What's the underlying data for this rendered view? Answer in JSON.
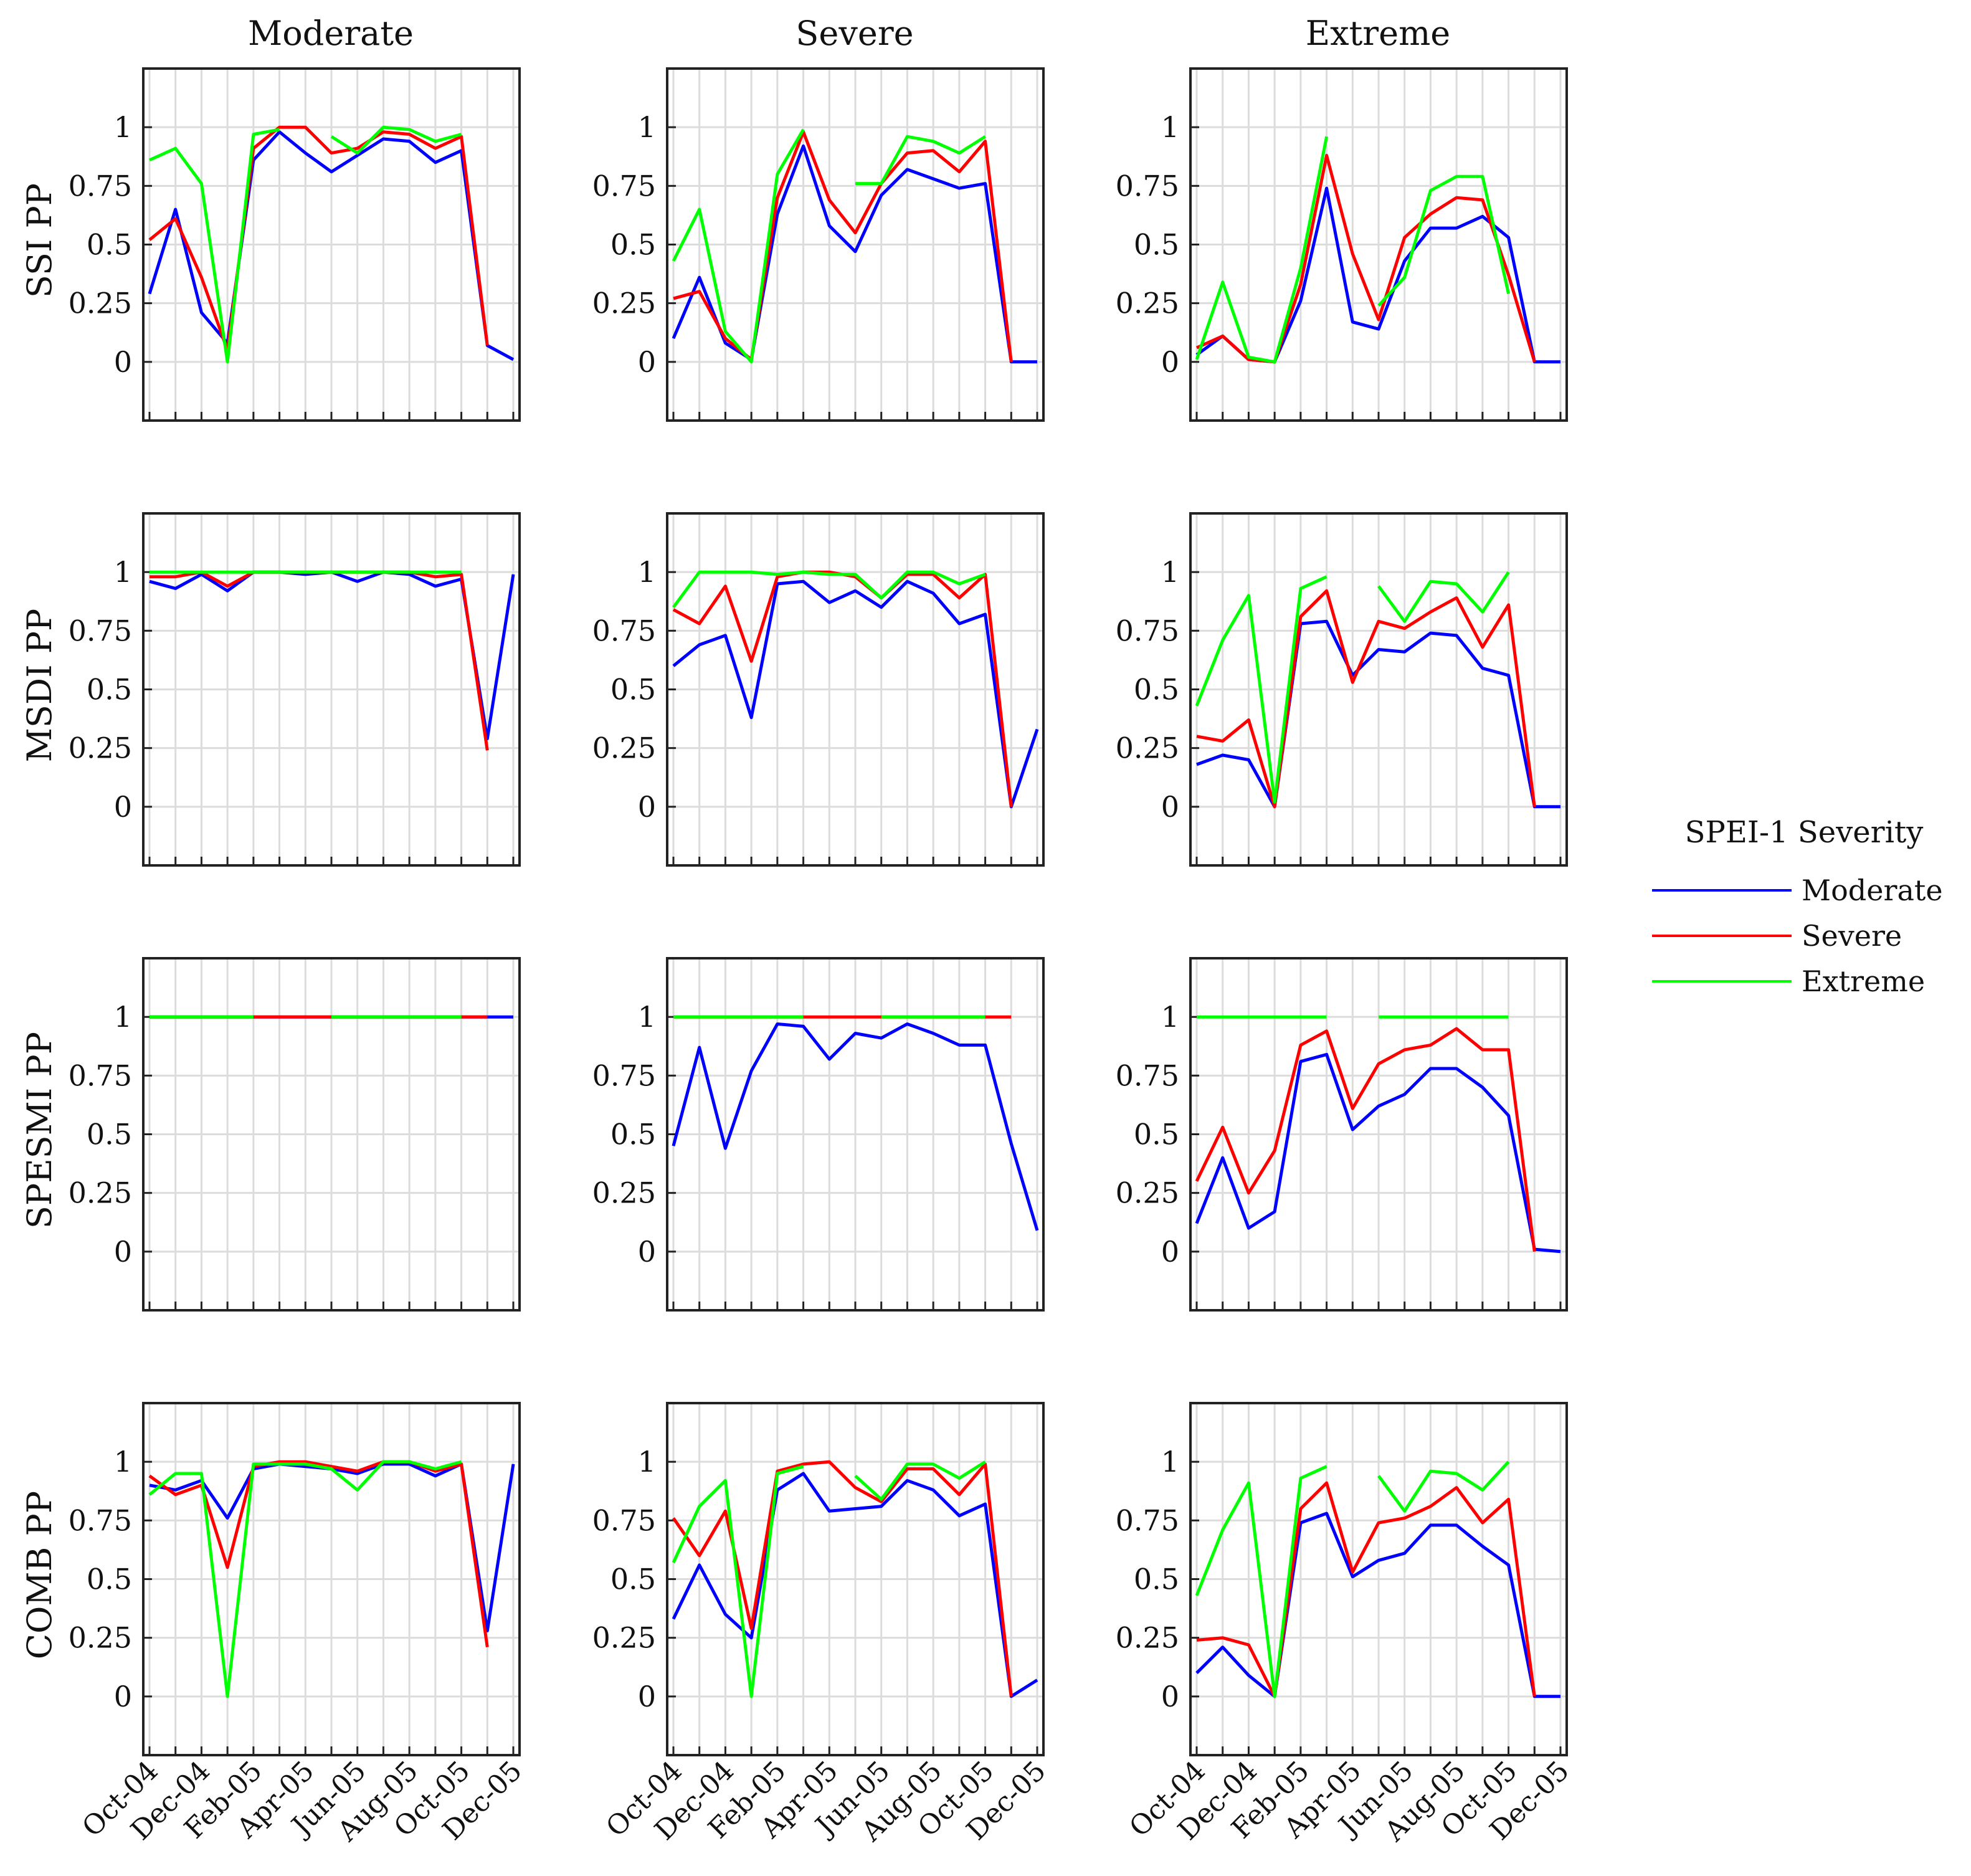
{
  "figure": {
    "column_titles": [
      "Moderate",
      "Severe",
      "Extreme"
    ],
    "row_labels": [
      "SSI PP",
      "MSDI PP",
      "SPESMI PP",
      "COMB PP"
    ],
    "x_tick_labels": [
      "Oct-04",
      "Dec-04",
      "Feb-05",
      "Apr-05",
      "Jun-05",
      "Aug-05",
      "Oct-05",
      "Dec-05"
    ],
    "y_tick_labels": [
      "0",
      "0.25",
      "0.5",
      "0.75",
      "1"
    ],
    "legend": {
      "title": "SPEI-1 Severity",
      "entries": [
        {
          "name": "Moderate",
          "color": "#0000ff"
        },
        {
          "name": "Severe",
          "color": "#ff0000"
        },
        {
          "name": "Extreme",
          "color": "#00ff00"
        }
      ]
    }
  },
  "chart_data": {
    "type": "line",
    "x": [
      "Oct-04",
      "Nov-04",
      "Dec-04",
      "Jan-05",
      "Feb-05",
      "Mar-05",
      "Apr-05",
      "May-05",
      "Jun-05",
      "Jul-05",
      "Aug-05",
      "Sep-05",
      "Oct-05",
      "Nov-05",
      "Dec-05"
    ],
    "ylim": [
      -0.25,
      1.25
    ],
    "y_ticks": [
      0,
      0.25,
      0.5,
      0.75,
      1
    ],
    "grid": true,
    "legend_position": "right",
    "panels": [
      {
        "row": "SSI PP",
        "column": "Moderate",
        "series": [
          {
            "name": "Moderate",
            "values": [
              0.29,
              0.65,
              0.21,
              0.08,
              0.86,
              0.98,
              0.89,
              0.81,
              0.88,
              0.95,
              0.94,
              0.85,
              0.9,
              0.07,
              0.01
            ]
          },
          {
            "name": "Severe",
            "values": [
              0.52,
              0.61,
              0.36,
              0.05,
              0.91,
              1.0,
              1.0,
              0.89,
              0.91,
              0.98,
              0.97,
              0.91,
              0.96,
              0.07,
              null
            ]
          },
          {
            "name": "Extreme",
            "values": [
              0.86,
              0.91,
              0.76,
              0.0,
              0.97,
              0.99,
              null,
              0.96,
              0.89,
              1.0,
              0.99,
              0.94,
              0.97,
              null,
              null
            ]
          }
        ]
      },
      {
        "row": "SSI PP",
        "column": "Severe",
        "series": [
          {
            "name": "Moderate",
            "values": [
              0.1,
              0.36,
              0.08,
              0.01,
              0.63,
              0.92,
              0.58,
              0.47,
              0.71,
              0.82,
              0.78,
              0.74,
              0.76,
              0.0,
              0.0
            ]
          },
          {
            "name": "Severe",
            "values": [
              0.27,
              0.3,
              0.1,
              0.01,
              0.7,
              0.98,
              0.69,
              0.55,
              0.76,
              0.89,
              0.9,
              0.81,
              0.94,
              0.0,
              null
            ]
          },
          {
            "name": "Extreme",
            "values": [
              0.43,
              0.65,
              0.13,
              0.0,
              0.8,
              0.99,
              null,
              0.76,
              0.76,
              0.96,
              0.94,
              0.89,
              0.96,
              null,
              null
            ]
          }
        ]
      },
      {
        "row": "SSI PP",
        "column": "Extreme",
        "series": [
          {
            "name": "Moderate",
            "values": [
              0.03,
              0.11,
              0.01,
              0.0,
              0.26,
              0.74,
              0.17,
              0.14,
              0.43,
              0.57,
              0.57,
              0.62,
              0.53,
              0.0,
              0.0
            ]
          },
          {
            "name": "Severe",
            "values": [
              0.06,
              0.11,
              0.01,
              0.0,
              0.33,
              0.88,
              0.46,
              0.18,
              0.53,
              0.63,
              0.7,
              0.69,
              0.37,
              0.0,
              null
            ]
          },
          {
            "name": "Extreme",
            "values": [
              0.01,
              0.34,
              0.02,
              0.0,
              0.4,
              0.96,
              null,
              0.24,
              0.36,
              0.73,
              0.79,
              0.79,
              0.29,
              null,
              null
            ]
          }
        ]
      },
      {
        "row": "MSDI PP",
        "column": "Moderate",
        "series": [
          {
            "name": "Moderate",
            "values": [
              0.96,
              0.93,
              0.99,
              0.92,
              1.0,
              1.0,
              0.99,
              1.0,
              0.96,
              1.0,
              0.99,
              0.94,
              0.97,
              0.29,
              0.99
            ]
          },
          {
            "name": "Severe",
            "values": [
              0.98,
              0.98,
              1.0,
              0.94,
              1.0,
              1.0,
              1.0,
              1.0,
              1.0,
              1.0,
              1.0,
              0.98,
              0.99,
              0.24,
              null
            ]
          },
          {
            "name": "Extreme",
            "values": [
              1.0,
              1.0,
              1.0,
              1.0,
              1.0,
              1.0,
              1.0,
              1.0,
              1.0,
              1.0,
              1.0,
              1.0,
              1.0,
              null,
              null
            ]
          }
        ]
      },
      {
        "row": "MSDI PP",
        "column": "Severe",
        "series": [
          {
            "name": "Moderate",
            "values": [
              0.6,
              0.69,
              0.73,
              0.38,
              0.95,
              0.96,
              0.87,
              0.92,
              0.85,
              0.96,
              0.91,
              0.78,
              0.82,
              0.0,
              0.33
            ]
          },
          {
            "name": "Severe",
            "values": [
              0.84,
              0.78,
              0.94,
              0.62,
              0.98,
              1.0,
              1.0,
              0.98,
              0.89,
              0.99,
              0.99,
              0.89,
              0.99,
              0.0,
              null
            ]
          },
          {
            "name": "Extreme",
            "values": [
              0.85,
              1.0,
              1.0,
              1.0,
              0.99,
              1.0,
              0.99,
              0.99,
              0.89,
              1.0,
              1.0,
              0.95,
              0.99,
              null,
              null
            ]
          }
        ]
      },
      {
        "row": "MSDI PP",
        "column": "Extreme",
        "series": [
          {
            "name": "Moderate",
            "values": [
              0.18,
              0.22,
              0.2,
              0.0,
              0.78,
              0.79,
              0.56,
              0.67,
              0.66,
              0.74,
              0.73,
              0.59,
              0.56,
              0.0,
              0.0
            ]
          },
          {
            "name": "Severe",
            "values": [
              0.3,
              0.28,
              0.37,
              0.0,
              0.81,
              0.92,
              0.53,
              0.79,
              0.76,
              0.83,
              0.89,
              0.68,
              0.86,
              0.0,
              null
            ]
          },
          {
            "name": "Extreme",
            "values": [
              0.43,
              0.71,
              0.9,
              0.02,
              0.93,
              0.98,
              null,
              0.94,
              0.79,
              0.96,
              0.95,
              0.83,
              1.0,
              null,
              null
            ]
          }
        ]
      },
      {
        "row": "SPESMI PP",
        "column": "Moderate",
        "series": [
          {
            "name": "Moderate",
            "values": [
              1,
              1,
              1,
              1,
              1,
              1,
              1,
              1,
              1,
              1,
              1,
              1,
              1,
              1,
              1
            ]
          },
          {
            "name": "Severe",
            "values": [
              1,
              1,
              1,
              1,
              1,
              1,
              1,
              1,
              1,
              1,
              1,
              1,
              1,
              1,
              null
            ]
          },
          {
            "name": "Extreme",
            "values": [
              1,
              1,
              1,
              1,
              1,
              null,
              null,
              1,
              1,
              1,
              1,
              1,
              1,
              null,
              null
            ]
          }
        ]
      },
      {
        "row": "SPESMI PP",
        "column": "Severe",
        "series": [
          {
            "name": "Moderate",
            "values": [
              0.45,
              0.87,
              0.44,
              0.77,
              0.97,
              0.96,
              0.82,
              0.93,
              0.91,
              0.97,
              0.93,
              0.88,
              0.88,
              0.46,
              0.09
            ]
          },
          {
            "name": "Severe",
            "values": [
              1,
              1,
              1,
              1,
              1,
              1,
              1,
              1,
              1,
              1,
              1,
              1,
              1,
              1,
              null
            ]
          },
          {
            "name": "Extreme",
            "values": [
              1,
              1,
              1,
              1,
              1,
              1,
              null,
              null,
              1,
              1,
              1,
              1,
              1,
              null,
              null
            ]
          }
        ]
      },
      {
        "row": "SPESMI PP",
        "column": "Extreme",
        "series": [
          {
            "name": "Moderate",
            "values": [
              0.12,
              0.4,
              0.1,
              0.17,
              0.81,
              0.84,
              0.52,
              0.62,
              0.67,
              0.78,
              0.78,
              0.7,
              0.58,
              0.01,
              0.0
            ]
          },
          {
            "name": "Severe",
            "values": [
              0.3,
              0.53,
              0.25,
              0.43,
              0.88,
              0.94,
              0.61,
              0.8,
              0.86,
              0.88,
              0.95,
              0.86,
              0.86,
              0.0,
              null
            ]
          },
          {
            "name": "Extreme",
            "values": [
              1,
              1,
              1,
              1,
              1,
              1,
              null,
              1,
              1,
              1,
              1,
              1,
              1,
              null,
              null
            ]
          }
        ]
      },
      {
        "row": "COMB PP",
        "column": "Moderate",
        "series": [
          {
            "name": "Moderate",
            "values": [
              0.9,
              0.88,
              0.92,
              0.76,
              0.97,
              0.99,
              0.98,
              0.97,
              0.95,
              0.99,
              0.99,
              0.94,
              0.99,
              0.28,
              0.99
            ]
          },
          {
            "name": "Severe",
            "values": [
              0.94,
              0.86,
              0.9,
              0.55,
              0.98,
              1.0,
              1.0,
              0.98,
              0.96,
              1.0,
              1.0,
              0.96,
              0.99,
              0.21,
              null
            ]
          },
          {
            "name": "Extreme",
            "values": [
              0.86,
              0.95,
              0.95,
              0.0,
              0.99,
              0.99,
              0.99,
              0.97,
              0.88,
              1.0,
              1.0,
              0.97,
              1.0,
              null,
              null
            ]
          }
        ]
      },
      {
        "row": "COMB PP",
        "column": "Severe",
        "series": [
          {
            "name": "Moderate",
            "values": [
              0.33,
              0.56,
              0.35,
              0.25,
              0.88,
              0.95,
              0.79,
              0.8,
              0.81,
              0.92,
              0.88,
              0.77,
              0.82,
              0.0,
              0.07
            ]
          },
          {
            "name": "Severe",
            "values": [
              0.76,
              0.6,
              0.79,
              0.29,
              0.96,
              0.99,
              1.0,
              0.89,
              0.83,
              0.97,
              0.97,
              0.86,
              0.99,
              0.0,
              null
            ]
          },
          {
            "name": "Extreme",
            "values": [
              0.57,
              0.81,
              0.92,
              0.0,
              0.95,
              0.98,
              null,
              0.94,
              0.84,
              0.99,
              0.99,
              0.93,
              1.0,
              null,
              null
            ]
          }
        ]
      },
      {
        "row": "COMB PP",
        "column": "Extreme",
        "series": [
          {
            "name": "Moderate",
            "values": [
              0.1,
              0.21,
              0.09,
              0.0,
              0.74,
              0.78,
              0.51,
              0.58,
              0.61,
              0.73,
              0.73,
              0.64,
              0.56,
              0.0,
              0.0
            ]
          },
          {
            "name": "Severe",
            "values": [
              0.24,
              0.25,
              0.22,
              0.0,
              0.8,
              0.91,
              0.53,
              0.74,
              0.76,
              0.81,
              0.89,
              0.74,
              0.84,
              0.0,
              null
            ]
          },
          {
            "name": "Extreme",
            "values": [
              0.43,
              0.71,
              0.91,
              0.0,
              0.93,
              0.98,
              null,
              0.94,
              0.79,
              0.96,
              0.95,
              0.88,
              1.0,
              null,
              null
            ]
          }
        ]
      }
    ]
  }
}
